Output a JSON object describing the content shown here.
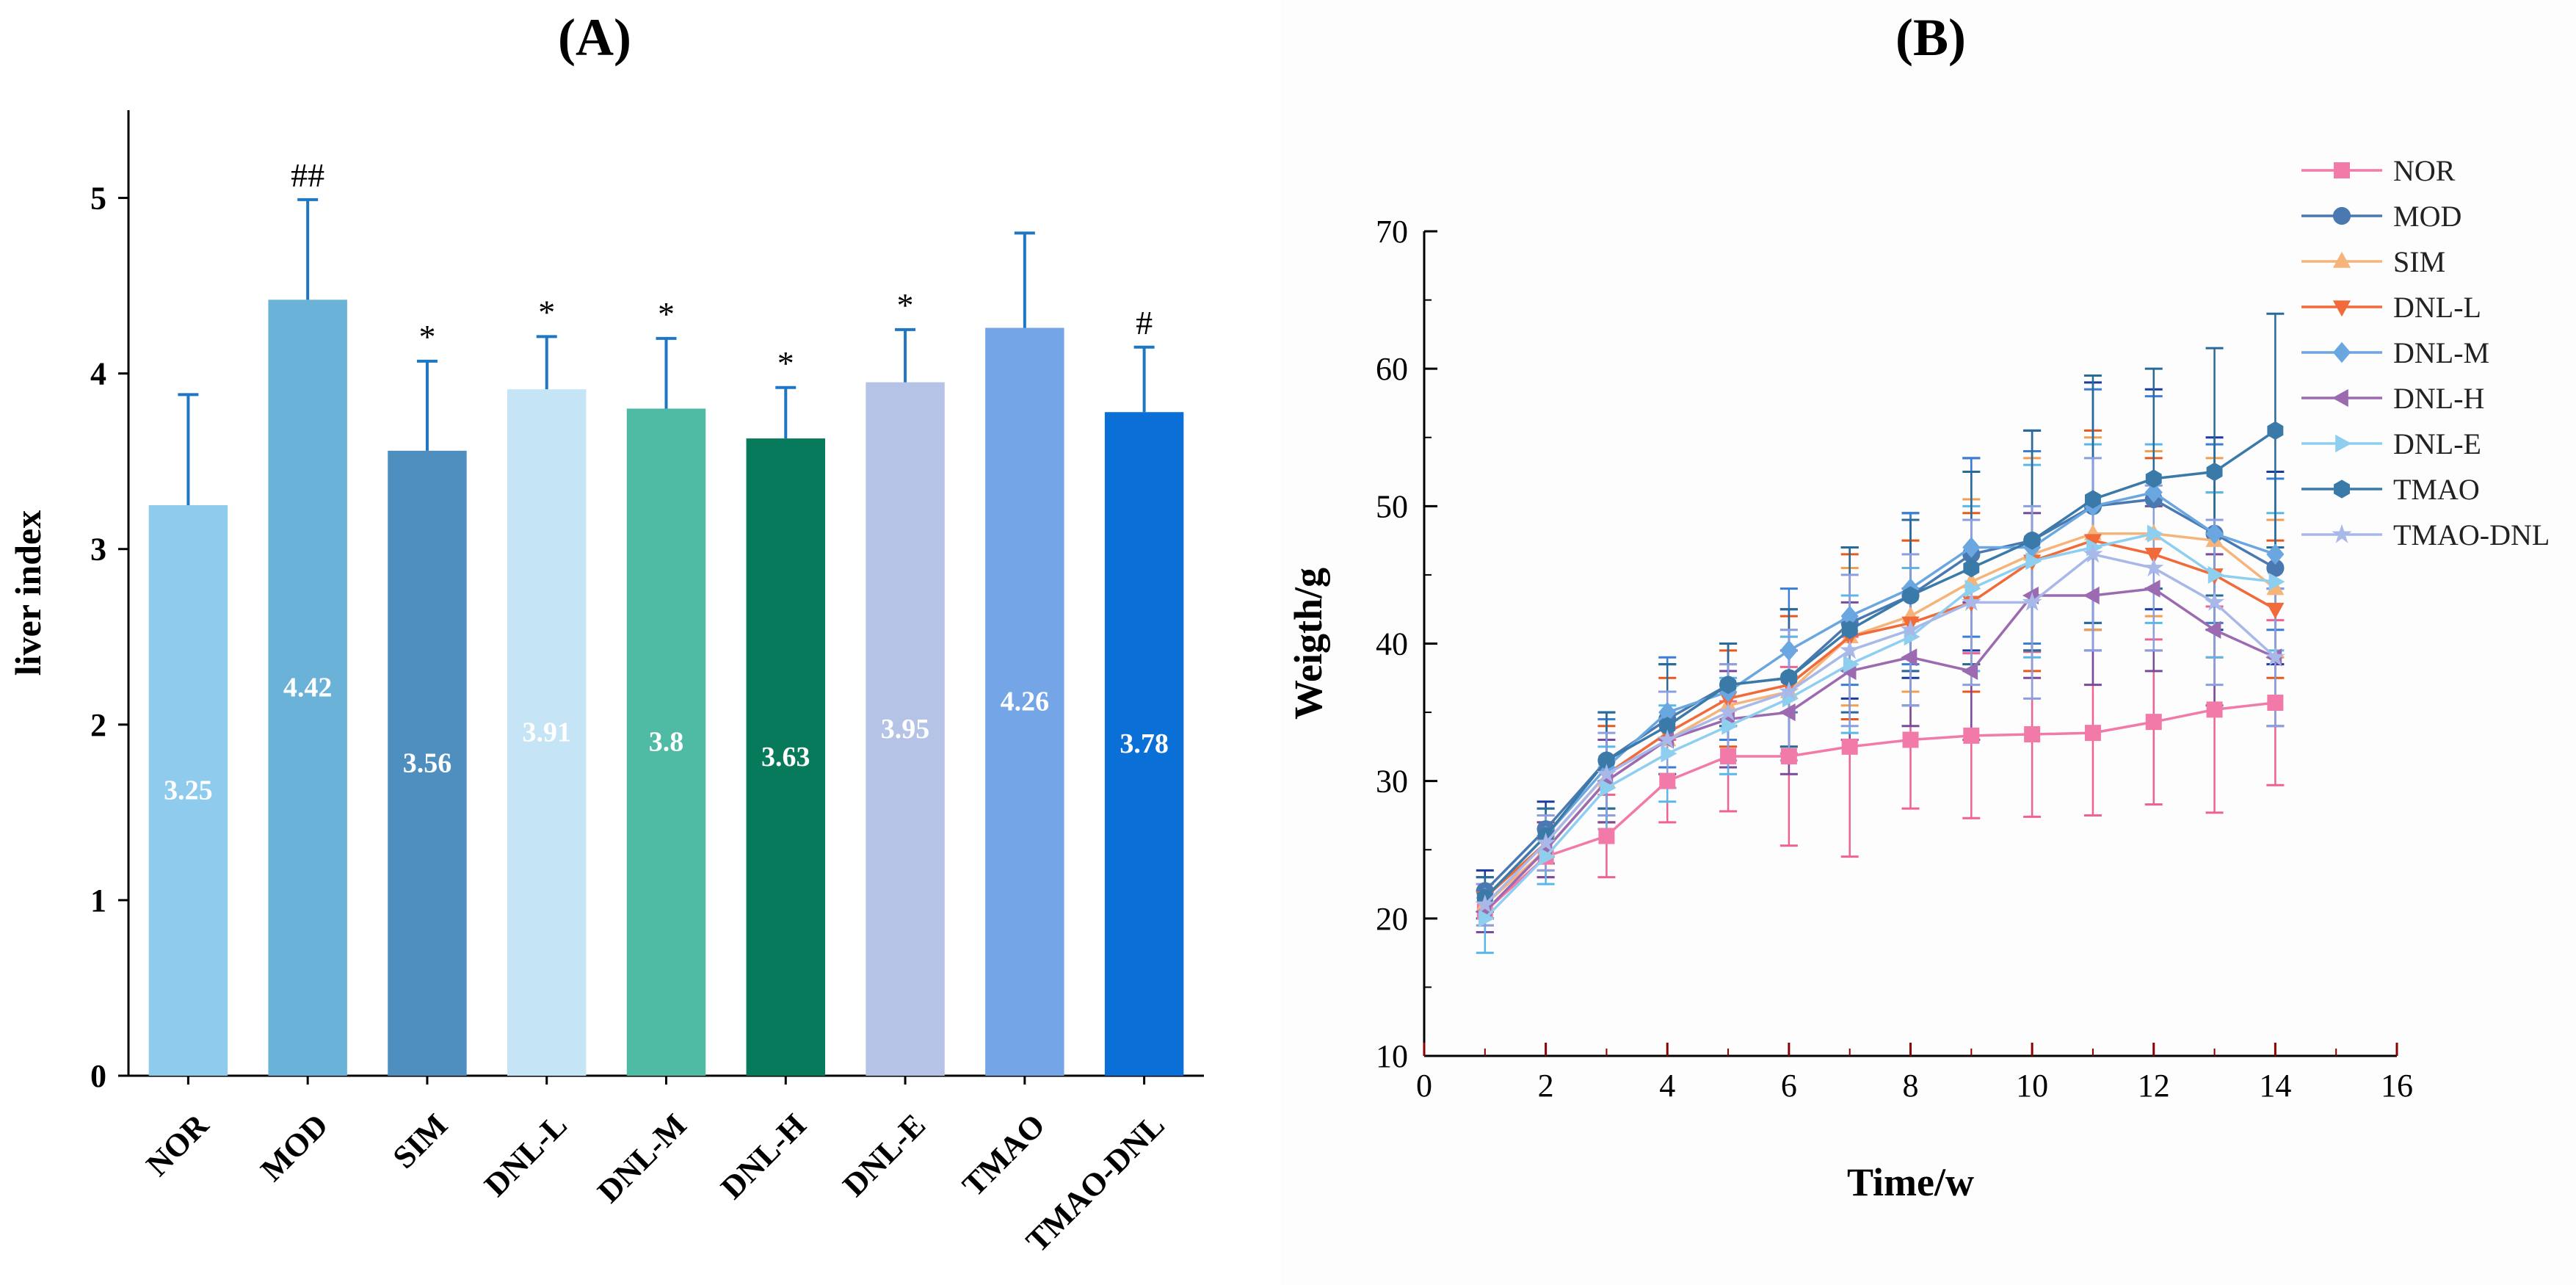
{
  "panels": {
    "a_title": "(A)",
    "b_title": "(B)"
  },
  "chart_data": [
    {
      "type": "bar",
      "title": "(A)",
      "xlabel": "",
      "ylabel": "liver index",
      "ylim": [
        0,
        5.5
      ],
      "yticks": [
        0,
        1,
        2,
        3,
        4,
        5
      ],
      "categories": [
        "NOR",
        "MOD",
        "SIM",
        "DNL-L",
        "DNL-M",
        "DNL-H",
        "DNL-E",
        "TMAO",
        "TMAO-DNL"
      ],
      "values": [
        3.25,
        4.42,
        3.56,
        3.91,
        3.8,
        3.63,
        3.95,
        4.26,
        3.78
      ],
      "value_labels": [
        "3.25",
        "4.42",
        "3.56",
        "3.91",
        "3.8",
        "3.63",
        "3.95",
        "4.26",
        "3.78"
      ],
      "errors": [
        0.63,
        0.57,
        0.51,
        0.3,
        0.4,
        0.29,
        0.3,
        0.54,
        0.37
      ],
      "annotations": [
        "",
        "##",
        "*",
        "*",
        "*",
        "*",
        "*",
        "",
        "#"
      ],
      "colors": [
        "#8ecbed",
        "#6ab2d8",
        "#4f8fbf",
        "#c5e5f6",
        "#4fbba5",
        "#067a5a",
        "#b5c3e6",
        "#74a5e6",
        "#0a70d8"
      ],
      "error_color": "#1f77c4"
    },
    {
      "type": "line",
      "title": "(B)",
      "xlabel": "Time/w",
      "ylabel": "Weigth/g",
      "xlim": [
        0,
        16
      ],
      "ylim": [
        10,
        70
      ],
      "xticks": [
        0,
        2,
        4,
        6,
        8,
        10,
        12,
        14,
        16
      ],
      "yticks": [
        10,
        20,
        30,
        40,
        50,
        60,
        70
      ],
      "x": [
        1,
        2,
        3,
        4,
        5,
        6,
        7,
        8,
        9,
        10,
        11,
        12,
        13,
        14
      ],
      "series": [
        {
          "name": "NOR",
          "marker": "square",
          "color": "#f27aa8",
          "error_color": "#f06292",
          "values": [
            20.5,
            24.5,
            26.0,
            30.0,
            31.8,
            31.8,
            32.5,
            33.0,
            33.3,
            33.4,
            33.5,
            34.3,
            35.2,
            35.7
          ],
          "errors": [
            1.5,
            1.5,
            3.0,
            3.0,
            4.0,
            6.5,
            8.0,
            5.0,
            6.0,
            6.0,
            6.0,
            6.0,
            7.5,
            6.0
          ]
        },
        {
          "name": "MOD",
          "marker": "circle",
          "color": "#4a78b0",
          "error_color": "#1a3c9e",
          "values": [
            22.0,
            26.5,
            31.5,
            34.5,
            37.0,
            37.5,
            41.5,
            43.5,
            46.5,
            47.5,
            50.0,
            50.5,
            48.0,
            45.5
          ],
          "errors": [
            1.5,
            2.0,
            3.5,
            4.0,
            3.0,
            5.0,
            5.5,
            6.0,
            7.0,
            8.0,
            9.0,
            8.0,
            7.0,
            7.0
          ]
        },
        {
          "name": "SIM",
          "marker": "triangle-up",
          "color": "#f5b47a",
          "error_color": "#f0a050",
          "values": [
            21.0,
            25.0,
            30.0,
            33.0,
            35.5,
            36.5,
            40.5,
            42.0,
            44.5,
            46.5,
            48.0,
            48.0,
            47.5,
            44.0
          ],
          "errors": [
            1.5,
            2.0,
            3.0,
            3.5,
            3.0,
            4.0,
            5.0,
            5.5,
            6.0,
            7.0,
            7.0,
            6.0,
            6.0,
            5.0
          ]
        },
        {
          "name": "DNL-L",
          "marker": "triangle-down",
          "color": "#f06a3a",
          "error_color": "#e8581c",
          "values": [
            21.5,
            25.5,
            30.5,
            33.5,
            36.0,
            37.0,
            40.5,
            41.5,
            43.0,
            46.0,
            47.5,
            46.5,
            45.0,
            42.5
          ],
          "errors": [
            1.5,
            2.0,
            3.5,
            4.0,
            3.5,
            5.0,
            6.0,
            6.0,
            6.5,
            8.0,
            8.0,
            7.0,
            6.0,
            5.0
          ]
        },
        {
          "name": "DNL-M",
          "marker": "diamond",
          "color": "#6aa7e0",
          "error_color": "#3a7ed6",
          "values": [
            21.5,
            26.0,
            31.0,
            35.0,
            36.5,
            39.5,
            42.0,
            44.0,
            47.0,
            47.0,
            50.0,
            51.0,
            48.0,
            46.5
          ],
          "errors": [
            1.5,
            2.0,
            3.5,
            4.0,
            3.5,
            4.5,
            5.0,
            5.5,
            6.5,
            7.0,
            8.5,
            7.0,
            6.5,
            5.5
          ]
        },
        {
          "name": "DNL-H",
          "marker": "triangle-left",
          "color": "#9c6ab0",
          "error_color": "#7b4a9a",
          "values": [
            20.5,
            25.0,
            30.0,
            33.0,
            34.5,
            35.0,
            38.0,
            39.0,
            38.0,
            43.5,
            43.5,
            44.0,
            41.0,
            39.0
          ],
          "errors": [
            1.5,
            2.0,
            3.0,
            3.5,
            3.5,
            4.5,
            5.0,
            5.0,
            5.0,
            6.0,
            6.5,
            6.0,
            5.5,
            5.0
          ]
        },
        {
          "name": "DNL-E",
          "marker": "triangle-right",
          "color": "#8ecff0",
          "error_color": "#5ab8e8",
          "values": [
            20.0,
            24.5,
            29.5,
            32.0,
            34.0,
            36.0,
            38.5,
            40.5,
            44.0,
            46.0,
            47.0,
            48.0,
            45.0,
            44.5
          ],
          "errors": [
            2.5,
            2.0,
            3.0,
            3.5,
            3.5,
            4.5,
            5.0,
            5.0,
            6.0,
            7.0,
            7.5,
            6.5,
            6.0,
            5.0
          ]
        },
        {
          "name": "TMAO",
          "marker": "hexagon",
          "color": "#3a7aa8",
          "error_color": "#2a6a98",
          "values": [
            21.5,
            26.0,
            31.5,
            34.0,
            37.0,
            37.5,
            41.0,
            43.5,
            45.5,
            47.5,
            50.5,
            52.0,
            52.5,
            55.5
          ],
          "errors": [
            1.5,
            2.0,
            3.5,
            4.5,
            3.0,
            5.0,
            6.0,
            5.5,
            7.0,
            8.0,
            9.0,
            8.0,
            9.0,
            8.5
          ]
        },
        {
          "name": "TMAO-DNL",
          "marker": "star",
          "color": "#a8b8e8",
          "error_color": "#8a9ee0",
          "values": [
            21.0,
            25.5,
            30.5,
            33.0,
            35.0,
            36.5,
            39.5,
            41.0,
            43.0,
            43.0,
            46.5,
            45.5,
            43.0,
            39.0
          ],
          "errors": [
            1.5,
            2.0,
            3.0,
            3.5,
            3.5,
            4.5,
            5.5,
            5.5,
            6.0,
            7.0,
            7.0,
            6.0,
            6.0,
            5.0
          ]
        }
      ],
      "legend_position": "top-right"
    }
  ]
}
